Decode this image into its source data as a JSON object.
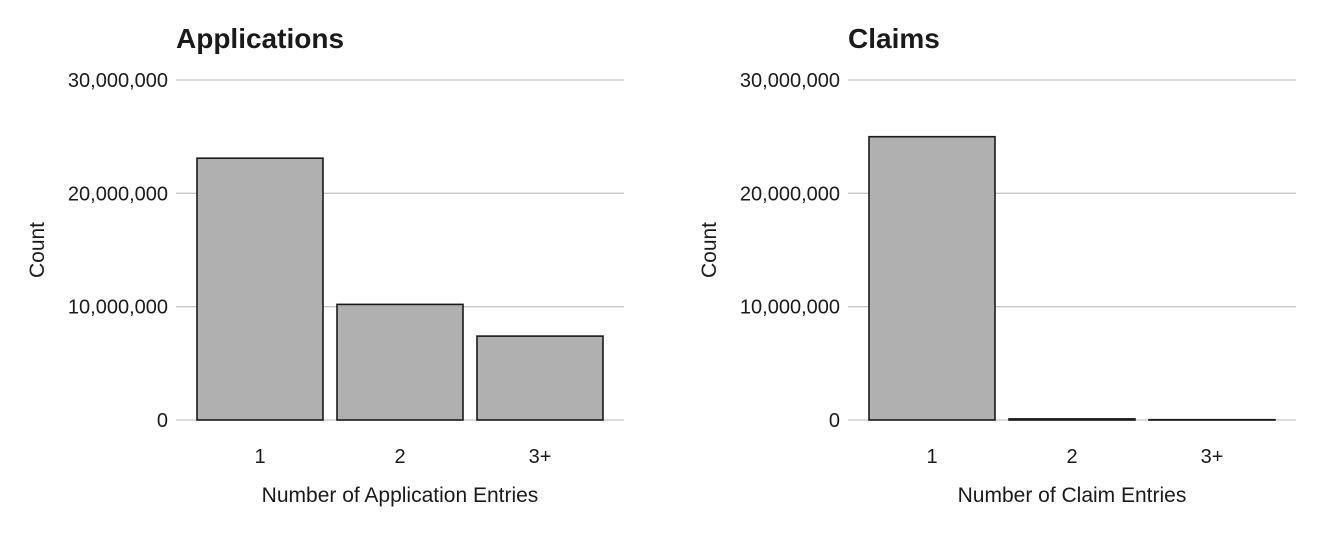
{
  "chart_data": [
    {
      "type": "bar",
      "title": "Applications",
      "xlabel": "Number of Application Entries",
      "ylabel": "Count",
      "categories": [
        "1",
        "2",
        "3+"
      ],
      "values": [
        23100000,
        10200000,
        7400000
      ],
      "ylim": [
        0,
        30000000
      ],
      "yticks": [
        0,
        10000000,
        20000000,
        30000000
      ],
      "ytick_labels": [
        "0",
        "10,000,000",
        "20,000,000",
        "30,000,000"
      ],
      "grid": "horizontal",
      "legend": "none",
      "bar_color": "#b0b0b0"
    },
    {
      "type": "bar",
      "title": "Claims",
      "xlabel": "Number of Claim Entries",
      "ylabel": "Count",
      "categories": [
        "1",
        "2",
        "3+"
      ],
      "values": [
        25000000,
        100000,
        30000
      ],
      "ylim": [
        0,
        30000000
      ],
      "yticks": [
        0,
        10000000,
        20000000,
        30000000
      ],
      "ytick_labels": [
        "0",
        "10,000,000",
        "20,000,000",
        "30,000,000"
      ],
      "grid": "horizontal",
      "legend": "none",
      "bar_color": "#b0b0b0"
    }
  ]
}
